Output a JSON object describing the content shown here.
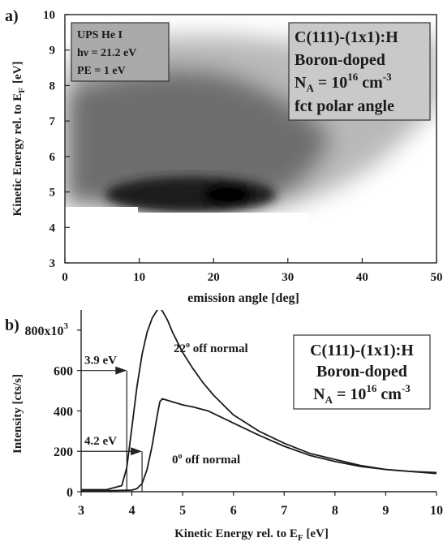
{
  "chart_data": [
    {
      "panel_label": "a)",
      "type": "heatmap",
      "xlabel": "emission angle [deg]",
      "ylabel_main": "Kinetic Energy rel. to E",
      "ylabel_sub": "F",
      "ylabel_unit": "[eV]",
      "xlim": [
        0,
        50
      ],
      "ylim": [
        3,
        10
      ],
      "x_ticks": [
        0,
        10,
        20,
        30,
        40,
        50
      ],
      "y_ticks": [
        3,
        4,
        5,
        6,
        7,
        8,
        9,
        10
      ],
      "colormap": "grayscale (darker = higher intensity)",
      "intensity_max_at": {
        "angle": 21,
        "energy": 5.0
      },
      "emission_onset_energy": [
        {
          "angle": 0,
          "energy": 4.8
        },
        {
          "angle": 10,
          "energy": 4.7
        },
        {
          "angle": 20,
          "energy": 4.5
        },
        {
          "angle": 30,
          "energy": 4.6
        },
        {
          "angle": 40,
          "energy": 4.9
        },
        {
          "angle": 50,
          "energy": 5.2
        }
      ],
      "info_box": {
        "line1": "UPS He I",
        "line2_prefix": "h",
        "line2_nu": "ν",
        "line2_rest": " = 21.2 eV",
        "line3": "PE = 1 eV"
      },
      "sample_box": {
        "line1": "C(111)-(1x1):H",
        "line2": "Boron-doped",
        "line3_N": "N",
        "line3_sub": "A",
        "line3_mid": " = 10",
        "line3_exp": "16",
        "line3_unit": " cm",
        "line3_unit_exp": "-3",
        "line4": "fct polar angle"
      }
    },
    {
      "panel_label": "b)",
      "type": "line",
      "xlabel_main": "Kinetic Energy rel. to E",
      "xlabel_sub": "F",
      "xlabel_unit": " [eV]",
      "ylabel": "Intensity [cts/s]",
      "xlim": [
        3,
        10
      ],
      "ylim": [
        0,
        900000
      ],
      "x_ticks": [
        3,
        4,
        5,
        6,
        7,
        8,
        9,
        10
      ],
      "y_ticks": [
        0,
        200,
        400,
        600,
        800
      ],
      "y_tick_top_label": "800x10",
      "y_tick_top_exp": "3",
      "series": [
        {
          "name_num": "22",
          "name_deg": "o",
          "name_rest": " off normal",
          "x": [
            3.0,
            3.5,
            3.8,
            3.9,
            4.0,
            4.1,
            4.2,
            4.3,
            4.4,
            4.5,
            4.55,
            4.6,
            4.7,
            4.8,
            5.0,
            5.2,
            5.4,
            5.6,
            5.8,
            6.0,
            6.5,
            7.0,
            7.5,
            8.0,
            8.5,
            9.0,
            9.5,
            10.0
          ],
          "y": [
            10000,
            10000,
            30000,
            120000,
            320000,
            520000,
            680000,
            790000,
            860000,
            900000,
            910000,
            895000,
            850000,
            790000,
            690000,
            610000,
            540000,
            480000,
            430000,
            380000,
            300000,
            240000,
            190000,
            160000,
            130000,
            110000,
            100000,
            90000
          ]
        },
        {
          "name_num": "0",
          "name_deg": "o",
          "name_rest": " off normal",
          "x": [
            3.0,
            3.5,
            4.0,
            4.1,
            4.2,
            4.3,
            4.4,
            4.5,
            4.55,
            4.6,
            4.8,
            5.0,
            5.2,
            5.5,
            6.0,
            6.5,
            7.0,
            7.5,
            8.0,
            8.5,
            9.0,
            9.5,
            10.0
          ],
          "y": [
            5000,
            5000,
            8000,
            15000,
            40000,
            110000,
            230000,
            380000,
            445000,
            460000,
            445000,
            430000,
            420000,
            400000,
            340000,
            280000,
            225000,
            180000,
            150000,
            125000,
            110000,
            100000,
            95000
          ]
        }
      ],
      "annotations": [
        {
          "label": "3.9 eV",
          "x": 3.9,
          "arrow_y": 600000
        },
        {
          "label": "4.2 eV",
          "x": 4.2,
          "arrow_y": 200000
        }
      ],
      "sample_box": {
        "line1": "C(111)-(1x1):H",
        "line2": "Boron-doped",
        "line3_N": "N",
        "line3_sub": "A",
        "line3_mid": " = 10",
        "line3_exp": "16",
        "line3_unit": " cm",
        "line3_unit_exp": "-3"
      }
    }
  ]
}
